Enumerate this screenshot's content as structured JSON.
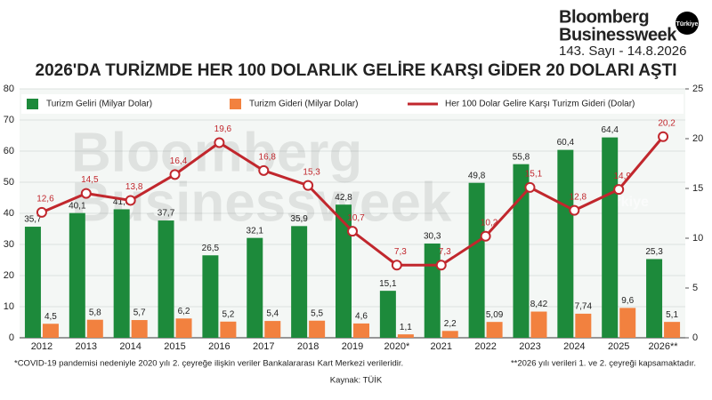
{
  "header": {
    "brand": [
      "Bloomberg",
      "Businessweek"
    ],
    "badge": "Türkiye",
    "issue": "143. Sayı - 14.8.2026"
  },
  "chart_data": {
    "type": "bar",
    "title": "2026'DA TURİZMDE HER 100 DOLARLIK GELİRE KARŞI GİDER 20 DOLARI AŞTI",
    "watermark": [
      "Bloomberg",
      "Businessweek",
      "Türkiye"
    ],
    "categories": [
      "2012",
      "2013",
      "2014",
      "2015",
      "2016",
      "2017",
      "2018",
      "2019",
      "2020*",
      "2021",
      "2022",
      "2023",
      "2024",
      "2025",
      "2026**"
    ],
    "series": [
      {
        "name": "Turizm Geliri (Milyar Dolar)",
        "type": "bar",
        "color": "#1d8a3b",
        "values": [
          35.7,
          40.1,
          41.3,
          37.7,
          26.5,
          32.1,
          35.9,
          42.8,
          15.1,
          30.3,
          49.8,
          55.8,
          60.4,
          64.4,
          25.3
        ],
        "value_labels": [
          "35,7",
          "40,1",
          "41,3",
          "37,7",
          "26,5",
          "32,1",
          "35,9",
          "42,8",
          "15,1",
          "30,3",
          "49,8",
          "55,8",
          "60,4",
          "64,4",
          "25,3"
        ]
      },
      {
        "name": "Turizm Gideri (Milyar Dolar)",
        "type": "bar",
        "color": "#f2813f",
        "values": [
          4.5,
          5.8,
          5.7,
          6.2,
          5.2,
          5.4,
          5.5,
          4.6,
          1.1,
          2.2,
          5.09,
          8.42,
          7.74,
          9.6,
          5.1
        ],
        "value_labels": [
          "4,5",
          "5,8",
          "5,7",
          "6,2",
          "5,2",
          "5,4",
          "5,5",
          "4,6",
          "1,1",
          "2,2",
          "5,09",
          "8,42",
          "7,74",
          "9,6",
          "5,1"
        ]
      },
      {
        "name": "Her 100 Dolar  Gelire Karşı Turizm Gideri (Dolar)",
        "type": "line",
        "axis": "y2",
        "color": "#c1272d",
        "values": [
          12.6,
          14.5,
          13.8,
          16.4,
          19.6,
          16.8,
          15.3,
          10.7,
          7.3,
          7.3,
          10.2,
          15.1,
          12.8,
          14.9,
          20.2
        ],
        "value_labels": [
          "12,6",
          "14,5",
          "13,8",
          "16,4",
          "19,6",
          "16,8",
          "15,3",
          "10,7",
          "7,3",
          "7,3",
          "10,2",
          "15,1",
          "12,8",
          "14,9",
          "20,2"
        ]
      }
    ],
    "ylim": [
      0,
      80
    ],
    "yticks": [
      0,
      10,
      20,
      30,
      40,
      50,
      60,
      70,
      80
    ],
    "y2lim": [
      0,
      25
    ],
    "y2ticks": [
      0,
      5,
      10,
      15,
      20,
      25
    ],
    "grid": true,
    "notes": [
      "*COVID-19 pandemisi nedeniyle 2020 yılı 2. çeyreğe ilişkin veriler Bankalararası Kart Merkezi verileridir.",
      "**2026 yılı verileri 1. ve 2. çeyreği kapsamaktadır."
    ],
    "source": "Kaynak: TÜİK"
  }
}
